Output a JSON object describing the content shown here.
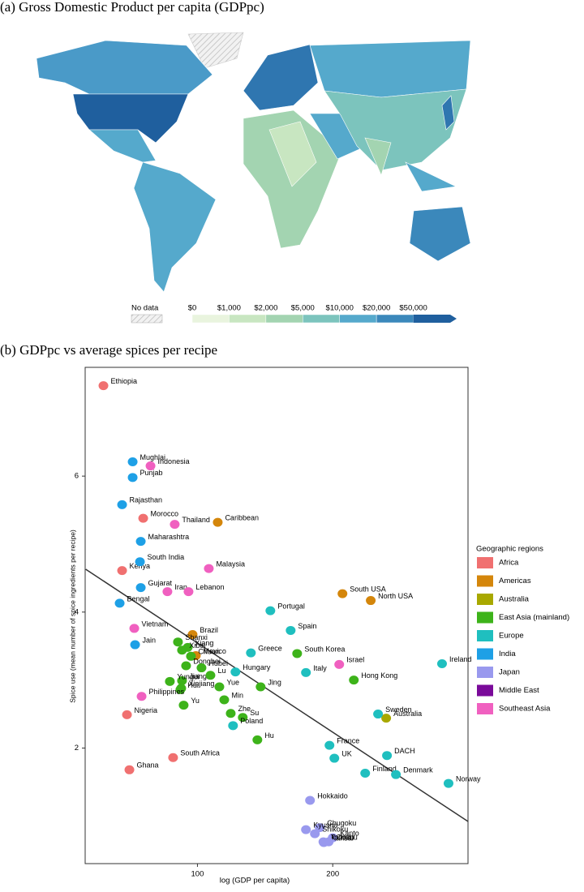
{
  "map": {
    "title": "(a) Gross Domestic Product per capita (GDPpc)",
    "no_data": "No data",
    "legend_labels": [
      "$0",
      "$1,000",
      "$2,000",
      "$5,000",
      "$10,000",
      "$20,000",
      "$50,000"
    ],
    "legend_colors": [
      "#e9f4de",
      "#c8e6c1",
      "#a3d4b1",
      "#7cc4bd",
      "#55a9cc",
      "#3b88bb",
      "#1f5f9e"
    ]
  },
  "chart_data": {
    "type": "scatter",
    "title": "(b) GDPpc vs average spices per recipe",
    "x_label": "log (GDP per capita)",
    "y_label": "Spice use (mean number of spice ingredients per recipe)",
    "xlim": [
      17,
      300
    ],
    "ylim": [
      0.3,
      7.6
    ],
    "xticks": [
      100,
      200
    ],
    "yticks": [
      2,
      4,
      6
    ],
    "legend_title": "Geographic regions",
    "legend_position": "right",
    "trend": {
      "x": [
        17.4,
        300
      ],
      "values": [
        4.63,
        0.92
      ]
    },
    "series": [
      {
        "name": "Africa",
        "color": "#f07070",
        "x": [
          30.5,
          59.9,
          44.3,
          47.9,
          49.7,
          82.0
        ],
        "values": [
          7.33,
          5.38,
          4.61,
          2.49,
          1.68,
          1.86
        ],
        "labels": [
          "Ethiopia",
          "Morocco",
          "Kenya",
          "Nigeria",
          "Ghana",
          "South Africa"
        ]
      },
      {
        "name": "Americas",
        "color": "#d4860b",
        "x": [
          115.0,
          96.4,
          98.8,
          207.2,
          228.1
        ],
        "values": [
          5.32,
          3.67,
          3.36,
          4.27,
          4.17
        ],
        "labels": [
          "Caribbean",
          "Brazil",
          "Mexico",
          "South USA",
          "North USA"
        ]
      },
      {
        "name": "Australia",
        "color": "#a8a800",
        "x": [
          239.5
        ],
        "values": [
          2.44
        ],
        "labels": [
          "Australia"
        ]
      },
      {
        "name": "East Asia (mainland)",
        "color": "#3db31a",
        "x": [
          85.6,
          92.8,
          88.6,
          95.2,
          91.6,
          103.0,
          88.6,
          109.6,
          79.6,
          88.0,
          87.4,
          116.2,
          119.8,
          89.8,
          124.6,
          133.5,
          146.7,
          144.3,
          215.6,
          173.7
        ],
        "values": [
          3.56,
          3.48,
          3.44,
          3.35,
          3.21,
          3.18,
          2.99,
          3.07,
          2.98,
          2.88,
          2.86,
          2.9,
          2.71,
          2.63,
          2.51,
          2.45,
          2.9,
          2.12,
          3.0,
          3.39
        ],
        "labels": [
          "Shanxi",
          "Xiang",
          "Xibei",
          "Chuan",
          "Dongbei",
          "Hubei",
          "Jiangxi",
          "Lu",
          "Yungui",
          "Xinjiang",
          "Hui",
          "Yue",
          "Min",
          "Yu",
          "Zhe",
          "Su",
          "Jing",
          "Hu",
          "Hong Kong",
          "South Korea"
        ]
      },
      {
        "name": "Europe",
        "color": "#1fbfbf",
        "x": [
          153.9,
          168.9,
          139.5,
          128.1,
          126.3,
          180.2,
          280.8,
          233.5,
          197.6,
          201.2,
          240.1,
          224.0,
          246.7,
          285.6
        ],
        "values": [
          4.02,
          3.73,
          3.4,
          3.12,
          2.33,
          3.11,
          3.24,
          2.5,
          2.04,
          1.85,
          1.89,
          1.63,
          1.61,
          1.48
        ],
        "labels": [
          "Portugal",
          "Spain",
          "Greece",
          "Hungary",
          "Poland",
          "Italy",
          "Ireland",
          "Sweden",
          "France",
          "UK",
          "DACH",
          "Finland",
          "Denmark",
          "Norway"
        ]
      },
      {
        "name": "India",
        "color": "#1ea0e6",
        "x": [
          52.1,
          52.1,
          44.3,
          58.1,
          57.5,
          58.1,
          42.5,
          53.9
        ],
        "values": [
          6.21,
          5.98,
          5.58,
          5.04,
          4.74,
          4.36,
          4.13,
          3.52
        ],
        "labels": [
          "Mughlai",
          "Punjab",
          "Rajasthan",
          "Maharashtra",
          "South India",
          "Gujarat",
          "Bengal",
          "Jain"
        ]
      },
      {
        "name": "Japan",
        "color": "#9999ee",
        "x": [
          183.2,
          190.4,
          180.2,
          186.8,
          200.0,
          193.1,
          193.4,
          197.0
        ],
        "values": [
          1.23,
          0.83,
          0.8,
          0.74,
          0.68,
          0.62,
          0.61,
          0.62
        ],
        "labels": [
          "Hokkaido",
          "Chugoku",
          "Kyushu",
          "Shikoku",
          "Kanto",
          "Tohoku",
          "Kansai",
          "Chubu"
        ]
      },
      {
        "name": "Middle East",
        "color": "#7a0a9a",
        "x": [],
        "values": [],
        "labels": []
      },
      {
        "name": "Southeast Asia",
        "color": "#f060c0",
        "x": [
          65.3,
          83.2,
          108.4,
          77.8,
          93.4,
          204.8,
          53.3,
          58.7
        ],
        "values": [
          6.15,
          5.29,
          4.64,
          4.3,
          4.3,
          3.23,
          3.76,
          2.76
        ],
        "labels": [
          "Indonesia",
          "Thailand",
          "Malaysia",
          "Iran",
          "Lebanon",
          "Israel",
          "Vietnam",
          "Philippines"
        ]
      }
    ]
  }
}
